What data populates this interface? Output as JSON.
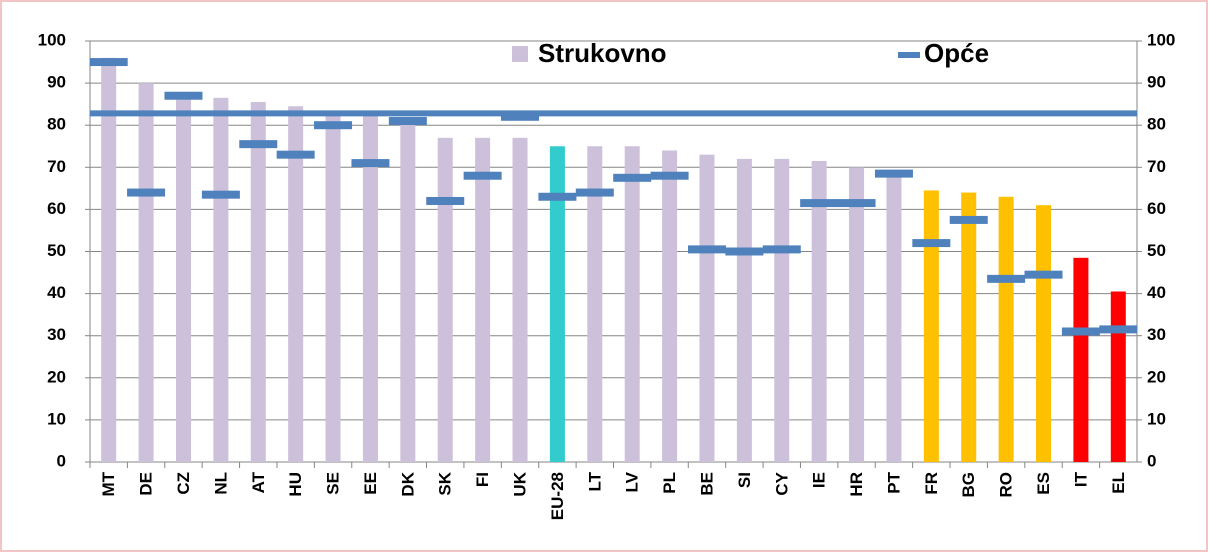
{
  "chart_data": {
    "type": "bar",
    "categories": [
      "MT",
      "DE",
      "CZ",
      "NL",
      "AT",
      "HU",
      "SE",
      "EE",
      "DK",
      "SK",
      "FI",
      "UK",
      "EU-28",
      "LT",
      "LV",
      "PL",
      "BE",
      "SI",
      "CY",
      "IE",
      "HR",
      "PT",
      "FR",
      "BG",
      "RO",
      "ES",
      "IT",
      "EL"
    ],
    "series": [
      {
        "name": "Strukovno",
        "color": "#ccc0da",
        "colors": [
          "#ccc0da",
          "#ccc0da",
          "#ccc0da",
          "#ccc0da",
          "#ccc0da",
          "#ccc0da",
          "#ccc0da",
          "#ccc0da",
          "#ccc0da",
          "#ccc0da",
          "#ccc0da",
          "#ccc0da",
          "#33cccc",
          "#ccc0da",
          "#ccc0da",
          "#ccc0da",
          "#ccc0da",
          "#ccc0da",
          "#ccc0da",
          "#ccc0da",
          "#ccc0da",
          "#ccc0da",
          "#ffc000",
          "#ffc000",
          "#ffc000",
          "#ffc000",
          "#ff0000",
          "#ff0000"
        ],
        "values": [
          96,
          90,
          87,
          86.5,
          85.5,
          84.5,
          83,
          83,
          81,
          77,
          77,
          77,
          75,
          75,
          75,
          74,
          73,
          72,
          72,
          71.5,
          70,
          69,
          64.5,
          64,
          63,
          61,
          48.5,
          40.5
        ]
      },
      {
        "name": "Opće",
        "color": "#4f81bd",
        "values": [
          95,
          64,
          87,
          63.5,
          75.5,
          73,
          80,
          71,
          81,
          62,
          68,
          82,
          63,
          64,
          67.5,
          68,
          50.5,
          50,
          50.5,
          61.5,
          61.5,
          68.5,
          52,
          57.5,
          43.5,
          44.5,
          31,
          31.5
        ]
      }
    ],
    "reference_line": 82.8,
    "ylim": [
      0,
      100
    ],
    "yticks": [
      0,
      10,
      20,
      30,
      40,
      50,
      60,
      70,
      80,
      90,
      100
    ],
    "y2lim": [
      0,
      100
    ],
    "y2ticks": [
      0,
      10,
      20,
      30,
      40,
      50,
      60,
      70,
      80,
      90,
      100
    ],
    "grid": true,
    "legend": "top"
  }
}
